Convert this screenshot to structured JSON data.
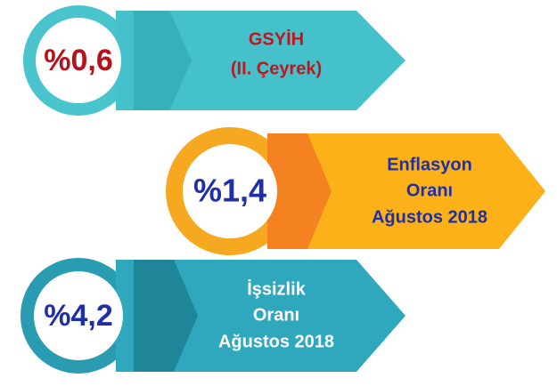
{
  "items": [
    {
      "value": "%0,6",
      "label": [
        "GSYİH",
        "(II. Çeyrek)"
      ]
    },
    {
      "value": "%1,4",
      "label": [
        "Enflasyon",
        "Oranı",
        "Ağustos 2018"
      ]
    },
    {
      "value": "%4,2",
      "label": [
        "İşsizlik",
        "Oranı",
        "Ağustos 2018"
      ]
    }
  ]
}
